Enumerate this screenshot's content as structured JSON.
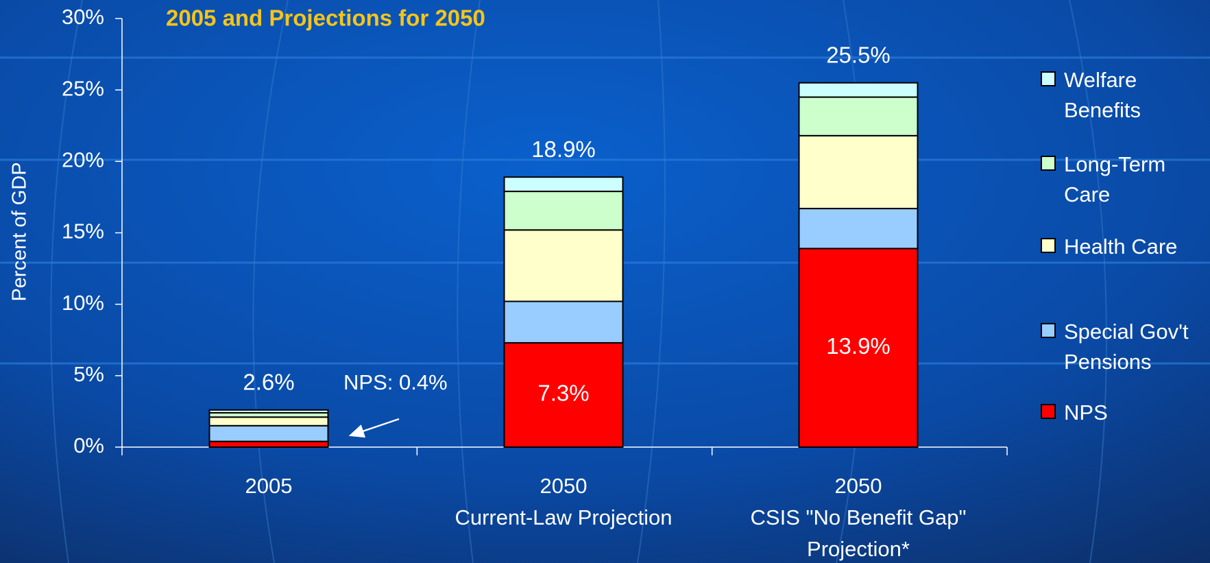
{
  "chart_data": {
    "type": "stacked-bar",
    "title": "2005 and Projections for 2050",
    "y_label": "Percent of GDP",
    "categories": [
      [
        "2005"
      ],
      [
        "2050",
        "Current-Law Projection"
      ],
      [
        "2050",
        "CSIS \"No Benefit Gap\"",
        "Projection*"
      ]
    ],
    "series": [
      {
        "name": "NPS",
        "color": "#ff0000",
        "values": [
          0.4,
          7.3,
          13.9
        ],
        "value_labels": [
          null,
          "7.3%",
          "13.9%"
        ]
      },
      {
        "name": "Special Gov't Pensions",
        "color": "#99ccff",
        "values": [
          1.1,
          2.9,
          2.8
        ]
      },
      {
        "name": "Health Care",
        "color": "#ffffcc",
        "values": [
          0.6,
          5.0,
          5.1
        ]
      },
      {
        "name": "Long-Term Care",
        "color": "#ccffcc",
        "values": [
          0.3,
          2.7,
          2.7
        ]
      },
      {
        "name": "Welfare Benefits",
        "color": "#ccffff",
        "values": [
          0.2,
          1.0,
          1.0
        ]
      }
    ],
    "totals": [
      2.6,
      18.9,
      25.5
    ],
    "total_labels": [
      "2.6%",
      "18.9%",
      "25.5%"
    ],
    "annotation": "NPS: 0.4%",
    "ylim": [
      0,
      30
    ],
    "yticks": [
      {
        "value": 0,
        "label": "0%"
      },
      {
        "value": 5,
        "label": "5%"
      },
      {
        "value": 10,
        "label": "10%"
      },
      {
        "value": 15,
        "label": "15%"
      },
      {
        "value": 20,
        "label": "20%"
      },
      {
        "value": 25,
        "label": "25%"
      },
      {
        "value": 30,
        "label": "30%"
      }
    ],
    "legend": "right"
  }
}
